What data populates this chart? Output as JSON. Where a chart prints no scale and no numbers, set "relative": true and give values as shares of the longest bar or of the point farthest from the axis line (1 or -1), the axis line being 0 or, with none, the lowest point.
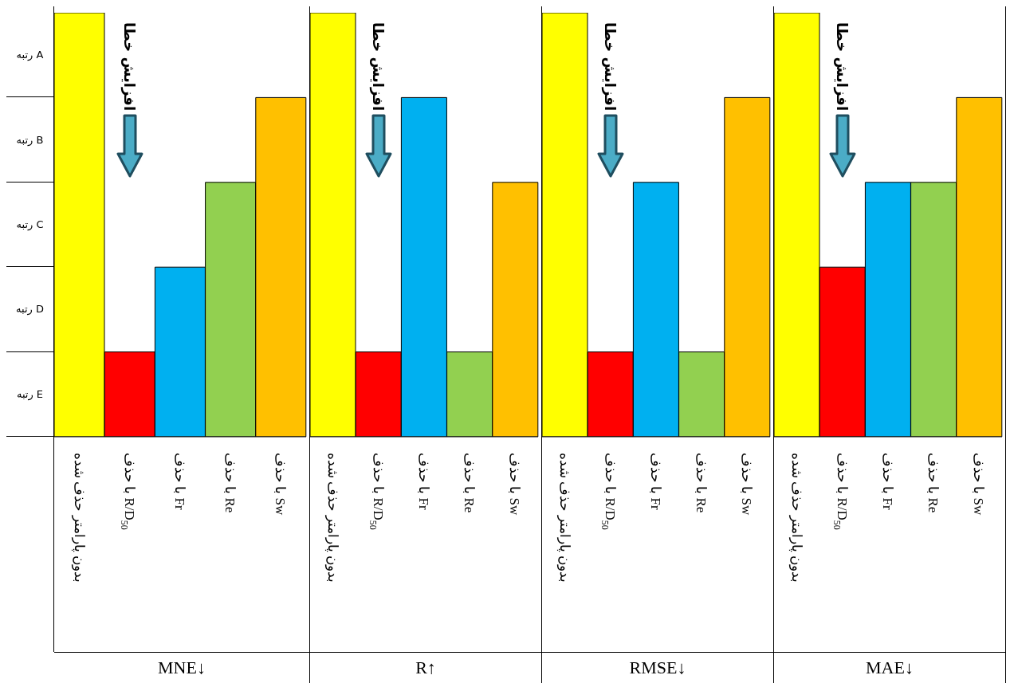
{
  "chart_data": [
    {
      "type": "bar",
      "title": "MNE↓",
      "categories": [
        "بدون پارامتر حذف شده",
        "با حذف R/D$_{50}$",
        "با حذف Fr",
        "با حذف Re",
        "با حذف Sw"
      ],
      "values": [
        1,
        0.2,
        0.4,
        0.6,
        0.8
      ],
      "colors": [
        "#ffff00",
        "#ff0000",
        "#00b0f0",
        "#92d050",
        "#ffc000"
      ],
      "relative": true,
      "annotations": [
        "افزایش خطا",
        "رتبه A",
        "رتبه B",
        "رتبه C",
        "رتبه D",
        "رتبه E"
      ]
    },
    {
      "type": "bar",
      "title": "R↑",
      "categories": [
        "بدون پارامتر حذف شده",
        "با حذف R/D$_{50}$",
        "با حذف Fr",
        "با حذف Re",
        "با حذف Sw"
      ],
      "values": [
        1,
        0.2,
        0.8,
        0.2,
        0.6
      ],
      "colors": [
        "#ffff00",
        "#ff0000",
        "#00b0f0",
        "#92d050",
        "#ffc000"
      ],
      "relative": true,
      "annotations": [
        "افزایش خطا"
      ]
    },
    {
      "type": "bar",
      "title": "RMSE↓",
      "categories": [
        "بدون پارامتر حذف شده",
        "با حذف R/D$_{50}$",
        "با حذف Fr",
        "با حذف Re",
        "با حذف Sw"
      ],
      "values": [
        1,
        0.2,
        0.6,
        0.2,
        0.8
      ],
      "colors": [
        "#ffff00",
        "#ff0000",
        "#00b0f0",
        "#92d050",
        "#ffc000"
      ],
      "relative": true,
      "annotations": [
        "افزایش خطا"
      ]
    },
    {
      "type": "bar",
      "title": "MAE↓",
      "categories": [
        "بدون پارامتر حذف شده",
        "با حذف R/D$_{50}$",
        "با حذف Fr",
        "با حذف Re",
        "با حذف Sw"
      ],
      "values": [
        1,
        0.4,
        0.6,
        0.6,
        0.8
      ],
      "colors": [
        "#ffff00",
        "#ff0000",
        "#00b0f0",
        "#92d050",
        "#ffc000"
      ],
      "relative": true,
      "annotations": [
        "افزایش خطا"
      ]
    }
  ]
}
